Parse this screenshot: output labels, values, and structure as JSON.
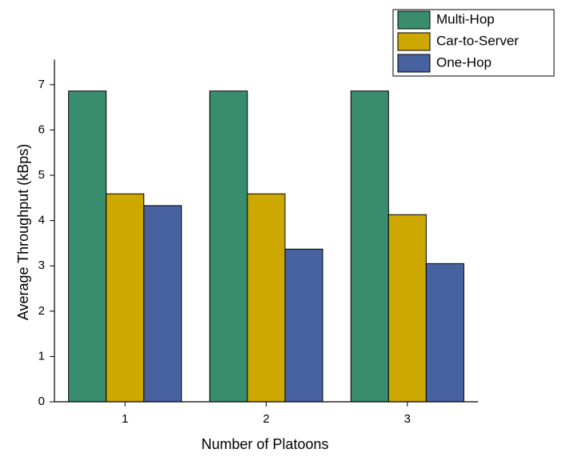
{
  "chart_data": {
    "type": "bar",
    "xlabel": "Number of Platoons",
    "ylabel": "Average Throughput (kBps)",
    "categories": [
      "1",
      "2",
      "3"
    ],
    "series": [
      {
        "name": "Multi-Hop",
        "color": "#3a8c6e",
        "values": [
          6.86,
          6.86,
          6.86
        ]
      },
      {
        "name": "Car-to-Server",
        "color": "#cca800",
        "values": [
          4.59,
          4.59,
          4.13
        ]
      },
      {
        "name": "One-Hop",
        "color": "#4862a0",
        "values": [
          4.33,
          3.37,
          3.05
        ]
      }
    ],
    "ylim": [
      0,
      7.5
    ],
    "yticks": [
      0,
      1,
      2,
      3,
      4,
      5,
      6,
      7
    ],
    "grid": false,
    "legend": "top-right"
  }
}
